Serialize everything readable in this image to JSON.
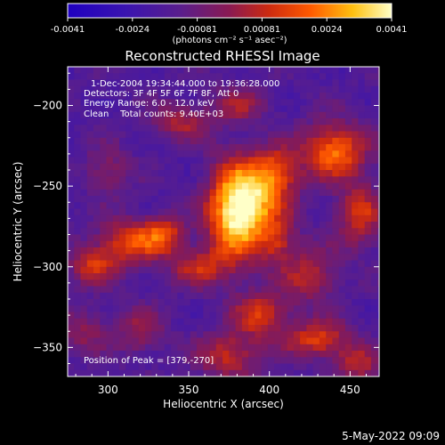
{
  "colorbar": {
    "ticks": [
      "-0.0041",
      "-0.0024",
      "-0.00081",
      "0.00081",
      "0.0024",
      "0.0041"
    ],
    "units": "(photons cm⁻² s⁻¹ asec⁻²)",
    "range": [
      -0.0041,
      0.0041
    ]
  },
  "chart_data": {
    "type": "heatmap",
    "title": "Reconstructed RHESSI Image",
    "xlabel": "Heliocentric X (arcsec)",
    "ylabel": "Heliocentric Y (arcsec)",
    "xlim": [
      275,
      468
    ],
    "ylim": [
      -368,
      -176
    ],
    "xticks": [
      300,
      350,
      400,
      450
    ],
    "yticks": [
      -200,
      -250,
      -300,
      -350
    ],
    "peak": [
      379,
      -270
    ],
    "blobs": [
      {
        "x": 378,
        "y": -268,
        "sx": 12,
        "sy": 22,
        "a": 1.0
      },
      {
        "x": 392,
        "y": -258,
        "sx": 14,
        "sy": 16,
        "a": 0.75
      },
      {
        "x": 405,
        "y": -240,
        "sx": 10,
        "sy": 10,
        "a": 0.55
      },
      {
        "x": 440,
        "y": -228,
        "sx": 14,
        "sy": 12,
        "a": 0.85
      },
      {
        "x": 456,
        "y": -268,
        "sx": 10,
        "sy": 14,
        "a": 0.6
      },
      {
        "x": 313,
        "y": -285,
        "sx": 14,
        "sy": 10,
        "a": 0.7
      },
      {
        "x": 335,
        "y": -280,
        "sx": 9,
        "sy": 8,
        "a": 0.6
      },
      {
        "x": 290,
        "y": -300,
        "sx": 10,
        "sy": 8,
        "a": 0.55
      },
      {
        "x": 355,
        "y": -300,
        "sx": 12,
        "sy": 8,
        "a": 0.5
      },
      {
        "x": 425,
        "y": -305,
        "sx": 12,
        "sy": 12,
        "a": 0.5
      },
      {
        "x": 395,
        "y": -330,
        "sx": 12,
        "sy": 10,
        "a": 0.6
      },
      {
        "x": 430,
        "y": -345,
        "sx": 14,
        "sy": 8,
        "a": 0.65
      },
      {
        "x": 375,
        "y": -355,
        "sx": 14,
        "sy": 10,
        "a": 0.55
      },
      {
        "x": 320,
        "y": -340,
        "sx": 10,
        "sy": 10,
        "a": 0.4
      },
      {
        "x": 345,
        "y": -210,
        "sx": 12,
        "sy": 8,
        "a": 0.45
      },
      {
        "x": 380,
        "y": -200,
        "sx": 12,
        "sy": 8,
        "a": 0.4
      },
      {
        "x": 300,
        "y": -240,
        "sx": 10,
        "sy": 10,
        "a": 0.35
      },
      {
        "x": 285,
        "y": -340,
        "sx": 10,
        "sy": 10,
        "a": 0.35
      },
      {
        "x": 455,
        "y": -360,
        "sx": 10,
        "sy": 8,
        "a": 0.5
      },
      {
        "x": 405,
        "y": -285,
        "sx": 8,
        "sy": 10,
        "a": 0.45
      }
    ]
  },
  "annotations": {
    "time": "1-Dec-2004 19:34:44.000 to 19:36:28.000",
    "detectors": "Detectors: 3F 4F 5F 6F 7F 8F, Att 0",
    "energy": "Energy Range: 6.0 - 12.0 keV",
    "clean": "Clean    Total counts: 9.40E+03",
    "peak": "Position of Peak = [379,-270]"
  },
  "footer": {
    "date": "5-May-2022 09:09"
  }
}
